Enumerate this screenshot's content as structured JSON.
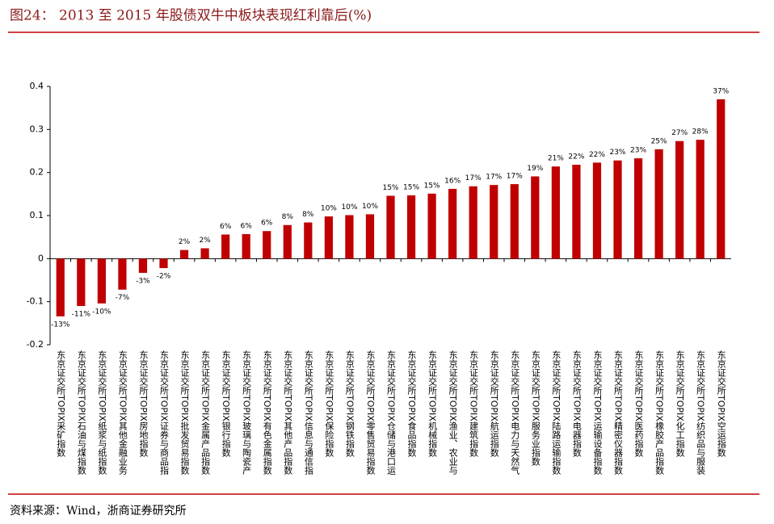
{
  "chart_data": {
    "type": "bar",
    "title": "图24： 2013 至 2015 年股债双牛中板块表现红利靠后(%)",
    "source": "资料来源：Wind，浙商证券研究所",
    "categories": [
      "东京证交所TOPIX采矿指数",
      "东京证交所TOPIX石油与煤指数",
      "东京证交所TOPIX纸浆与纸指数",
      "东京证交所TOPIX其他金融业务",
      "东京证交所TOPIX房地指数",
      "东京证交所TOPIX证券与商品指",
      "东京证交所TOPIX批发贸易指数",
      "东京证交所TOPIX金属产品指数",
      "东京证交所TOPIX银行指数",
      "东京证交所TOPIX玻璃与陶瓷产",
      "东京证交所TOPIX有色金属指数",
      "东京证交所TOPIX其他产品指数",
      "东京证交所TOPIX信息与通信指",
      "东京证交所TOPIX保险指数",
      "东京证交所TOPIX钢铁指数",
      "东京证交所TOPIX零售贸易指数",
      "东京证交所TOPIX仓储与港口运",
      "东京证交所TOPIX食品指数",
      "东京证交所TOPIX机械指数",
      "东京证交所TOPIX渔业、农业与",
      "东京证交所TOPIX建筑指数",
      "东京证交所TOPIX航运指数",
      "东京证交所TOPIX电力与天然气",
      "东京证交所TOPIX服务业指数",
      "东京证交所TOPIX陆路运输指数",
      "东京证交所TOPIX电器指数",
      "东京证交所TOPIX运输设备指数",
      "东京证交所TOPIX精密仪器指数",
      "东京证交所TOPIX医药指数",
      "东京证交所TOPIX橡胶产品指数",
      "东京证交所TOPIX化工指数",
      "东京证交所TOPIX纺织品与服装",
      "东京证交所TOPIX空运指数"
    ],
    "values": [
      -0.134,
      -0.11,
      -0.104,
      -0.072,
      -0.033,
      -0.022,
      0.02,
      0.024,
      0.056,
      0.057,
      0.064,
      0.078,
      0.084,
      0.098,
      0.101,
      0.103,
      0.146,
      0.147,
      0.151,
      0.162,
      0.168,
      0.171,
      0.173,
      0.191,
      0.214,
      0.218,
      0.223,
      0.228,
      0.233,
      0.254,
      0.273,
      0.276,
      0.37
    ],
    "value_labels": [
      "-13%",
      "-11%",
      "-10%",
      "-7%",
      "-3%",
      "-2%",
      "2%",
      "2%",
      "6%",
      "6%",
      "6%",
      "8%",
      "8%",
      "10%",
      "10%",
      "10%",
      "15%",
      "15%",
      "15%",
      "16%",
      "17%",
      "17%",
      "17%",
      "19%",
      "21%",
      "22%",
      "22%",
      "23%",
      "23%",
      "25%",
      "27%",
      "28%",
      "37%"
    ],
    "color": "#c00000",
    "ylim": [
      -0.2,
      0.4
    ],
    "yticks": [
      0.4,
      0.3,
      0.2,
      0.1,
      0,
      -0.1,
      -0.2
    ],
    "grid": false
  }
}
